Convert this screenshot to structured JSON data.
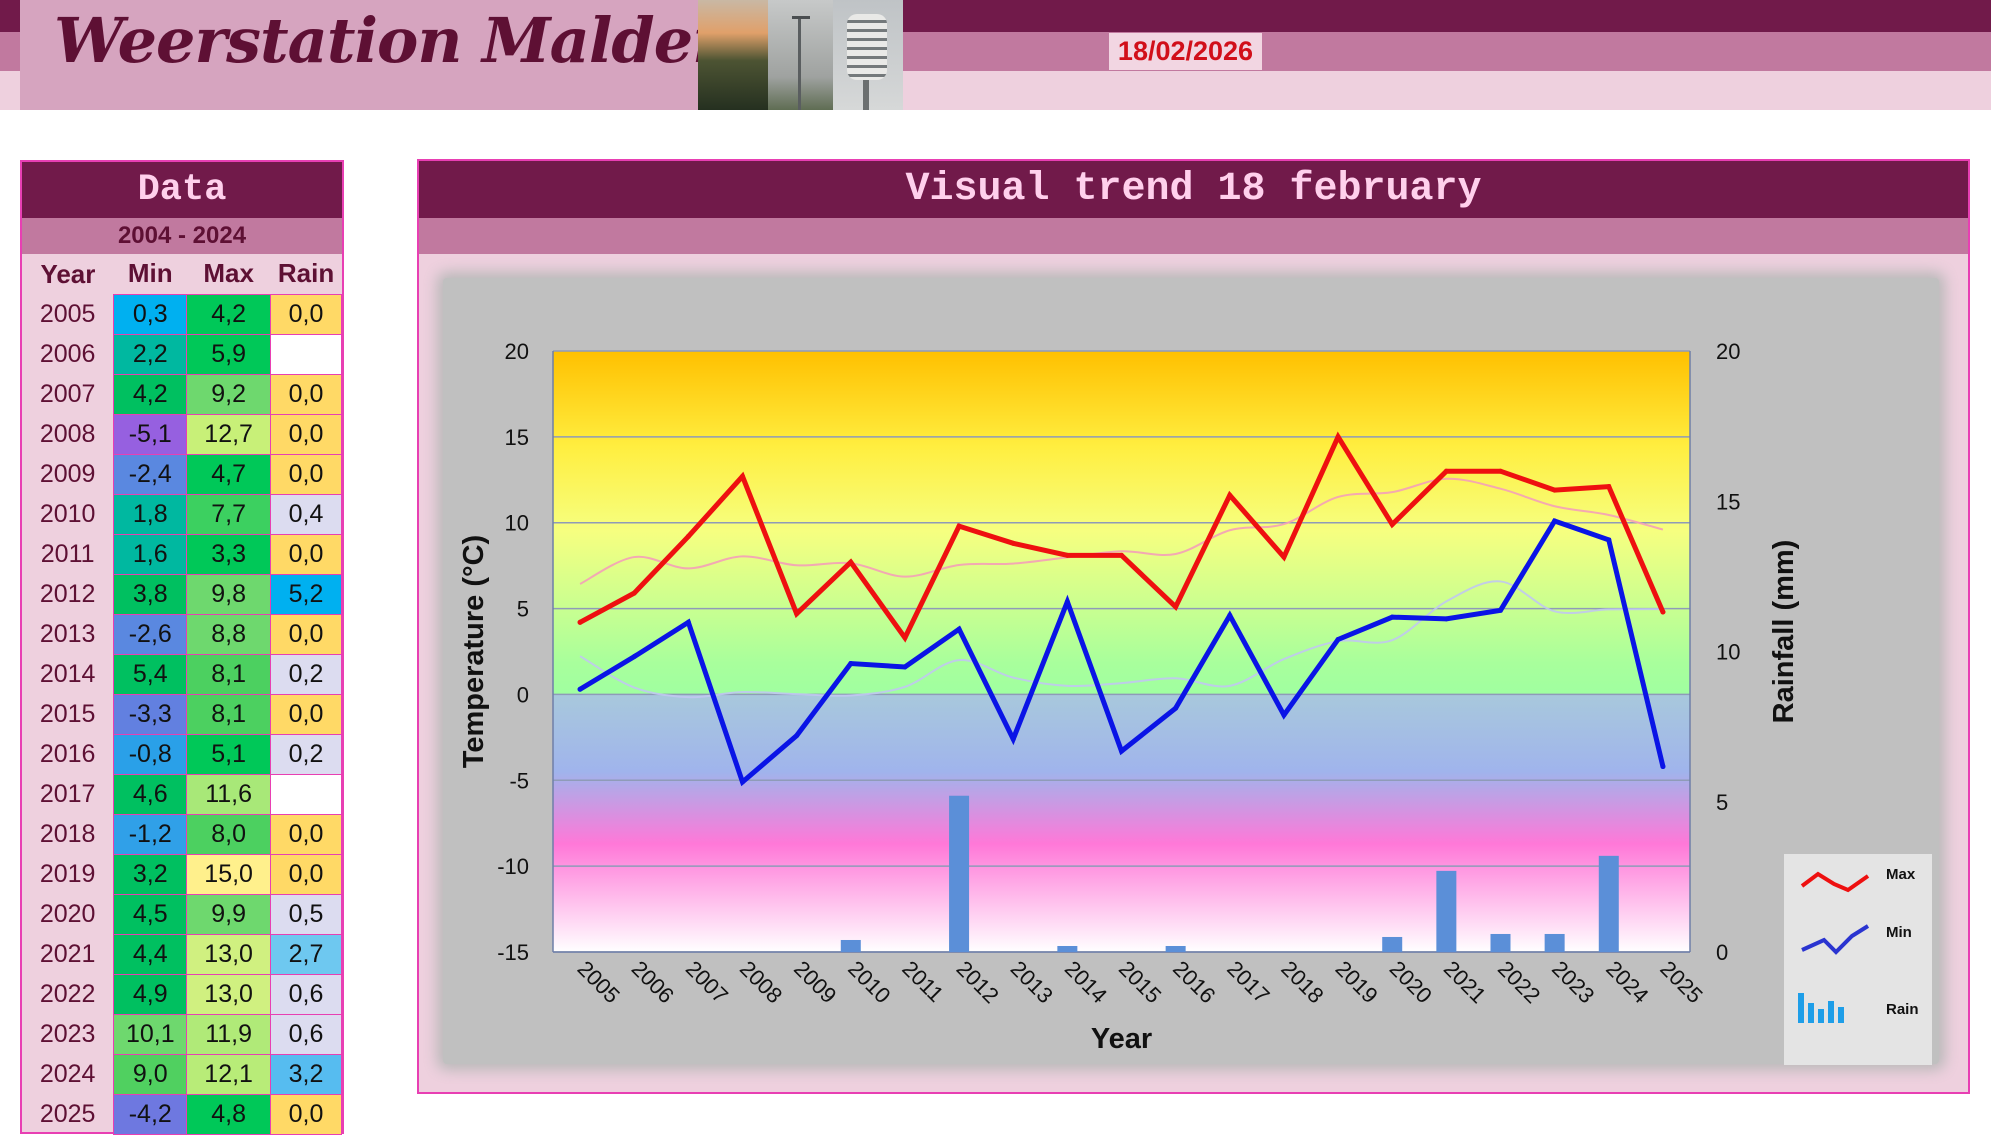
{
  "header": {
    "site_title": "Weerstation Malderen",
    "date": "18/02/2026",
    "colors": {
      "dark": "#711a4a",
      "mid": "#c1799f",
      "light": "#eed0de",
      "date": "#d10f1a"
    }
  },
  "data_panel": {
    "title": "Data",
    "range": "2004 - 2024",
    "columns": [
      "Year",
      "Min",
      "Max",
      "Rain"
    ],
    "rows": [
      {
        "year": "2005",
        "min": "0,3",
        "max": "4,2",
        "rain": "0,0",
        "min_color": "#00b0f0",
        "max_color": "#00c858",
        "rain_color": "#ffd966"
      },
      {
        "year": "2006",
        "min": "2,2",
        "max": "5,9",
        "rain": "",
        "min_color": "#00b8a0",
        "max_color": "#00c858",
        "rain_color": "#ffffff"
      },
      {
        "year": "2007",
        "min": "4,2",
        "max": "9,2",
        "rain": "0,0",
        "min_color": "#00c060",
        "max_color": "#6ed86e",
        "rain_color": "#ffd966"
      },
      {
        "year": "2008",
        "min": "-5,1",
        "max": "12,7",
        "rain": "0,0",
        "min_color": "#9660e0",
        "max_color": "#c8f078",
        "rain_color": "#ffd966"
      },
      {
        "year": "2009",
        "min": "-2,4",
        "max": "4,7",
        "rain": "0,0",
        "min_color": "#5a88e0",
        "max_color": "#00c858",
        "rain_color": "#ffd966"
      },
      {
        "year": "2010",
        "min": "1,8",
        "max": "7,7",
        "rain": "0,4",
        "min_color": "#00b8a0",
        "max_color": "#3cd060",
        "rain_color": "#dcdcf0"
      },
      {
        "year": "2011",
        "min": "1,6",
        "max": "3,3",
        "rain": "0,0",
        "min_color": "#00b8a0",
        "max_color": "#00c858",
        "rain_color": "#ffd966"
      },
      {
        "year": "2012",
        "min": "3,8",
        "max": "9,8",
        "rain": "5,2",
        "min_color": "#00c060",
        "max_color": "#6ed86e",
        "rain_color": "#00b0f0"
      },
      {
        "year": "2013",
        "min": "-2,6",
        "max": "8,8",
        "rain": "0,0",
        "min_color": "#5a88e0",
        "max_color": "#6ed86e",
        "rain_color": "#ffd966"
      },
      {
        "year": "2014",
        "min": "5,4",
        "max": "8,1",
        "rain": "0,2",
        "min_color": "#00c060",
        "max_color": "#4cd060",
        "rain_color": "#dcdcf0"
      },
      {
        "year": "2015",
        "min": "-3,3",
        "max": "8,1",
        "rain": "0,0",
        "min_color": "#6280e0",
        "max_color": "#4cd060",
        "rain_color": "#ffd966"
      },
      {
        "year": "2016",
        "min": "-0,8",
        "max": "5,1",
        "rain": "0,2",
        "min_color": "#2aa0e8",
        "max_color": "#00c858",
        "rain_color": "#dcdcf0"
      },
      {
        "year": "2017",
        "min": "4,6",
        "max": "11,6",
        "rain": "",
        "min_color": "#00c060",
        "max_color": "#a8e878",
        "rain_color": "#ffffff"
      },
      {
        "year": "2018",
        "min": "-1,2",
        "max": "8,0",
        "rain": "0,0",
        "min_color": "#30a0e8",
        "max_color": "#4cd060",
        "rain_color": "#ffd966"
      },
      {
        "year": "2019",
        "min": "3,2",
        "max": "15,0",
        "rain": "0,0",
        "min_color": "#00c060",
        "max_color": "#fff08c",
        "rain_color": "#ffd966"
      },
      {
        "year": "2020",
        "min": "4,5",
        "max": "9,9",
        "rain": "0,5",
        "min_color": "#00c060",
        "max_color": "#6ed86e",
        "rain_color": "#dcdcf0"
      },
      {
        "year": "2021",
        "min": "4,4",
        "max": "13,0",
        "rain": "2,7",
        "min_color": "#00c060",
        "max_color": "#d0f080",
        "rain_color": "#6ec8f0"
      },
      {
        "year": "2022",
        "min": "4,9",
        "max": "13,0",
        "rain": "0,6",
        "min_color": "#00c060",
        "max_color": "#d0f080",
        "rain_color": "#dcdcf0"
      },
      {
        "year": "2023",
        "min": "10,1",
        "max": "11,9",
        "rain": "0,6",
        "min_color": "#6ed86e",
        "max_color": "#b0ea78",
        "rain_color": "#dcdcf0"
      },
      {
        "year": "2024",
        "min": "9,0",
        "max": "12,1",
        "rain": "3,2",
        "min_color": "#50d060",
        "max_color": "#b8ec78",
        "rain_color": "#56bcf0"
      },
      {
        "year": "2025",
        "min": "-4,2",
        "max": "4,8",
        "rain": "0,0",
        "min_color": "#6e78e0",
        "max_color": "#00c858",
        "rain_color": "#ffd966"
      }
    ]
  },
  "chart_panel": {
    "title": "Visual trend 18 february"
  },
  "chart_data": {
    "type": "line",
    "title": "Visual trend 18 february",
    "xlabel": "Year",
    "ylabel": "Temperature (°C)",
    "y2label": "Rainfall (mm)",
    "ylim": [
      -15,
      20
    ],
    "y2lim": [
      0,
      20
    ],
    "yticks": [
      -15,
      -10,
      -5,
      0,
      5,
      10,
      15,
      20
    ],
    "y2ticks": [
      0,
      5,
      10,
      15,
      20
    ],
    "grid": true,
    "legend_position": "bottom-right",
    "x": [
      "2005",
      "2006",
      "2007",
      "2008",
      "2009",
      "2010",
      "2011",
      "2012",
      "2013",
      "2014",
      "2015",
      "2016",
      "2017",
      "2018",
      "2019",
      "2020",
      "2021",
      "2022",
      "2023",
      "2024",
      "2025"
    ],
    "series": [
      {
        "name": "Max",
        "type": "line",
        "axis": "left",
        "color": "#ee1010",
        "values": [
          4.2,
          5.9,
          9.2,
          12.7,
          4.7,
          7.7,
          3.3,
          9.8,
          8.8,
          8.1,
          8.1,
          5.1,
          11.6,
          8.0,
          15.0,
          9.9,
          13.0,
          13.0,
          11.9,
          12.1,
          4.8
        ]
      },
      {
        "name": "Min",
        "type": "line",
        "axis": "left",
        "color": "#0a14e6",
        "values": [
          0.3,
          2.2,
          4.2,
          -5.1,
          -2.4,
          1.8,
          1.6,
          3.8,
          -2.6,
          5.4,
          -3.3,
          -0.8,
          4.6,
          -1.2,
          3.2,
          4.5,
          4.4,
          4.9,
          10.1,
          9.0,
          -4.2
        ]
      },
      {
        "name": "Rain",
        "type": "bar",
        "axis": "right",
        "color": "#5b8fd8",
        "values": [
          0.0,
          null,
          0.0,
          0.0,
          0.0,
          0.4,
          0.0,
          5.2,
          0.0,
          0.2,
          0.0,
          0.2,
          null,
          0.0,
          0.0,
          0.5,
          2.7,
          0.6,
          0.6,
          3.2,
          0.0
        ]
      }
    ],
    "background_bands": [
      {
        "offset": 0.0,
        "color": "#ffc000"
      },
      {
        "offset": 0.16,
        "color": "#ffee40"
      },
      {
        "offset": 0.3,
        "color": "#f6ff80"
      },
      {
        "offset": 0.52,
        "color": "#a8ff9c"
      },
      {
        "offset": 0.571,
        "color": "#a0ffa0"
      },
      {
        "offset": 0.572,
        "color": "#a8c8dc"
      },
      {
        "offset": 0.7,
        "color": "#a0b4ec"
      },
      {
        "offset": 0.82,
        "color": "#ff78d8"
      },
      {
        "offset": 1.0,
        "color": "#ffffff"
      }
    ]
  }
}
